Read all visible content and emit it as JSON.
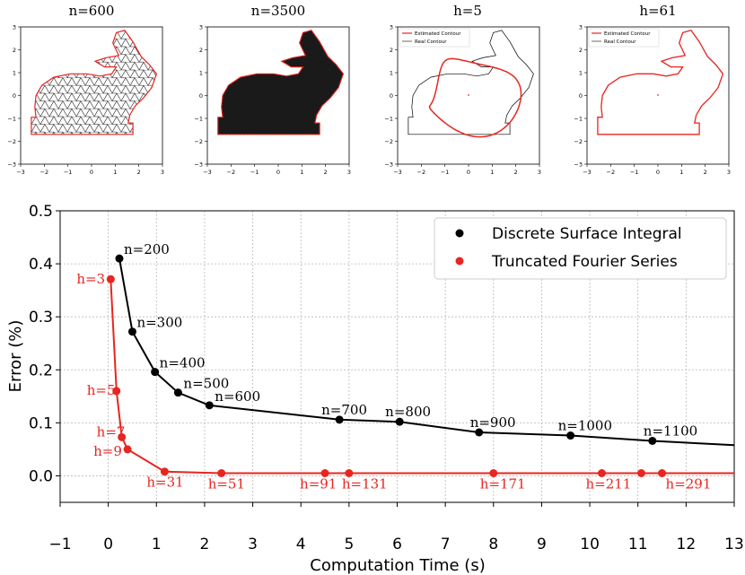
{
  "chart_data": [
    {
      "type": "mesh",
      "title": "n=600",
      "xlim": [
        -3,
        3
      ],
      "ylim": [
        -3,
        3
      ],
      "xticks": [
        "−3",
        "−2",
        "−1",
        "0",
        "1",
        "2",
        "3"
      ],
      "yticks": [
        "−3",
        "−2",
        "−1",
        "0",
        "1",
        "2",
        "3"
      ],
      "mesh_points": 600,
      "outline_color": "#e8251f"
    },
    {
      "type": "mesh",
      "title": "n=3500",
      "xlim": [
        -3,
        3
      ],
      "ylim": [
        -3,
        3
      ],
      "xticks": [
        "−3",
        "−2",
        "−1",
        "0",
        "1",
        "2",
        "3"
      ],
      "yticks": [
        "−3",
        "−2",
        "−1",
        "0",
        "1",
        "2",
        "3"
      ],
      "mesh_points": 3500,
      "outline_color": "#e8251f"
    },
    {
      "type": "line",
      "title": "h=5",
      "xlim": [
        -3,
        3
      ],
      "ylim": [
        -3,
        3
      ],
      "xticks": [
        "−3",
        "−2",
        "−1",
        "0",
        "1",
        "2",
        "3"
      ],
      "yticks": [
        "−3",
        "−2",
        "−1",
        "0",
        "1",
        "2",
        "3"
      ],
      "legend": [
        "Estimated Contour",
        "Real Contour"
      ],
      "legend_position": "top-left",
      "harmonics": 5,
      "colors": {
        "estimated": "#e8251f",
        "real": "#000000"
      }
    },
    {
      "type": "line",
      "title": "h=61",
      "xlim": [
        -3,
        3
      ],
      "ylim": [
        -3,
        3
      ],
      "xticks": [
        "−3",
        "−2",
        "−1",
        "0",
        "1",
        "2",
        "3"
      ],
      "yticks": [
        "−3",
        "−2",
        "−1",
        "0",
        "1",
        "2",
        "3"
      ],
      "legend": [
        "Estimated Contour",
        "Real Contour"
      ],
      "legend_position": "top-left",
      "harmonics": 61,
      "colors": {
        "estimated": "#e8251f",
        "real": "#000000"
      }
    },
    {
      "type": "line",
      "xlabel": "Computation Time (s)",
      "ylabel": "Error (%)",
      "xlim": [
        -1,
        13
      ],
      "ylim": [
        -0.05,
        0.5
      ],
      "xticks": [
        -1,
        0,
        1,
        2,
        3,
        4,
        5,
        6,
        7,
        8,
        9,
        10,
        11,
        12,
        13
      ],
      "xtick_labels": [
        "−1",
        "0",
        "1",
        "2",
        "3",
        "4",
        "5",
        "6",
        "7",
        "8",
        "9",
        "10",
        "11",
        "12",
        "13"
      ],
      "yticks": [
        0.0,
        0.1,
        0.2,
        0.3,
        0.4,
        0.5
      ],
      "ytick_labels": [
        "0.0",
        "0.1",
        "0.2",
        "0.3",
        "0.4",
        "0.5"
      ],
      "grid": true,
      "legend_position": "top-right",
      "series": [
        {
          "name": "Discrete Surface Integral",
          "color": "#000000",
          "x": [
            0.23,
            0.5,
            0.97,
            1.45,
            2.1,
            4.8,
            6.05,
            7.7,
            9.6,
            11.3,
            13.0
          ],
          "y": [
            0.41,
            0.272,
            0.196,
            0.157,
            0.133,
            0.106,
            0.102,
            0.082,
            0.076,
            0.066,
            0.058
          ],
          "labels": [
            "n=200",
            "n=300",
            "n=400",
            "n=500",
            "n=600",
            "n=700",
            "n=800",
            "n=900",
            "n=1000",
            "n=1100"
          ]
        },
        {
          "name": "Truncated Fourier Series",
          "color": "#e8251f",
          "x": [
            0.05,
            0.17,
            0.28,
            0.4,
            1.17,
            2.35,
            4.5,
            5.0,
            8.0,
            10.25,
            11.07,
            11.5,
            13.0
          ],
          "y": [
            0.371,
            0.16,
            0.073,
            0.05,
            0.008,
            0.005,
            0.005,
            0.005,
            0.005,
            0.005,
            0.005,
            0.005,
            0.005
          ],
          "labels": [
            "h=3",
            "h=5",
            "h=7",
            "h=9",
            "h=31",
            "h=51",
            "h=91",
            "h=131",
            "h=171",
            "h=211",
            "h=291"
          ]
        }
      ]
    }
  ]
}
